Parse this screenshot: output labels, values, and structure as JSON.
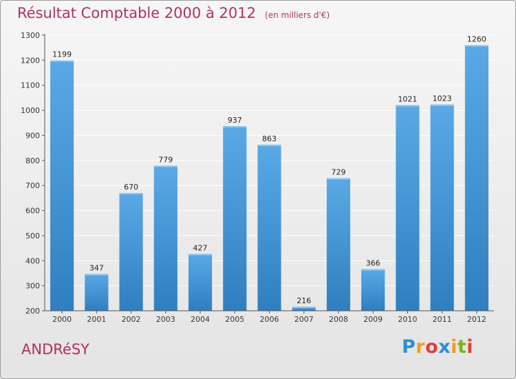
{
  "colors": {
    "title": "#b03060",
    "bar_top": "#5aa9e6",
    "bar_bottom": "#2f7fc0",
    "grid": "#ffffff",
    "axis": "#555555"
  },
  "town": "ANDRéSY",
  "logo": {
    "letters": [
      "P",
      "r",
      "o",
      "x",
      "i",
      "t",
      "i"
    ],
    "colors": [
      "#2a8fd6",
      "#f59a1b",
      "#e23d3d",
      "#2a8fd6",
      "#f59a1b",
      "#7ab51d",
      "#e23d3d"
    ]
  },
  "chart_data": {
    "type": "bar",
    "title": "Résultat Comptable 2000 à 2012",
    "subtitle": "(en milliers d'€)",
    "categories": [
      "2000",
      "2001",
      "2002",
      "2003",
      "2004",
      "2005",
      "2006",
      "2007",
      "2008",
      "2009",
      "2010",
      "2011",
      "2012"
    ],
    "values": [
      1199,
      347,
      670,
      779,
      427,
      937,
      863,
      216,
      729,
      366,
      1021,
      1023,
      1260
    ],
    "ylim": [
      200,
      1300
    ],
    "yticks": [
      200,
      300,
      400,
      500,
      600,
      700,
      800,
      900,
      1000,
      1100,
      1200,
      1300
    ],
    "grid": true,
    "legend": "none"
  }
}
